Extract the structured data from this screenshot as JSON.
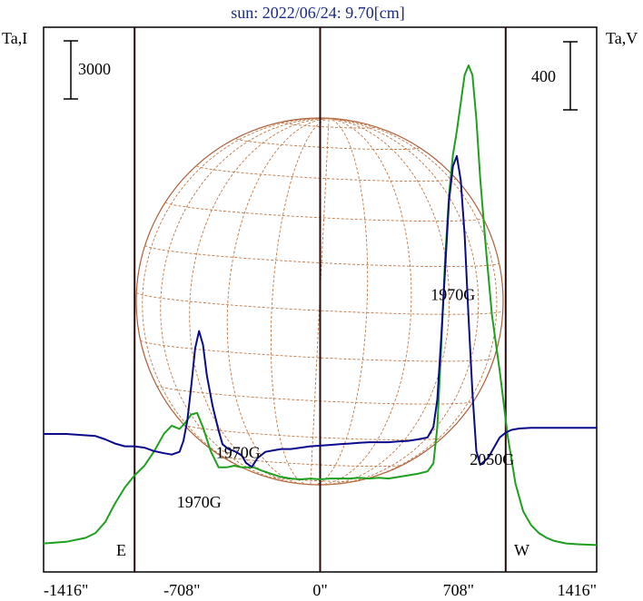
{
  "chart_data": {
    "type": "line",
    "title": "sun: 2022/06/24: 9.70[cm]",
    "ylabel_left": "Ta,I",
    "ylabel_right": "Ta,V",
    "scale_left": "3000",
    "scale_right": "400",
    "x_unit": "arcsec",
    "xlim": [
      -1416,
      1416
    ],
    "x_ticks": [
      -1416,
      -708,
      0,
      708,
      1416
    ],
    "x_tick_labels": [
      "-1416\"",
      "-708\"",
      "0\"",
      "708\"",
      "1416\""
    ],
    "limb_lines_x": [
      -950,
      0,
      950
    ],
    "limb_labels": [
      "E",
      "W"
    ],
    "grid": false,
    "colors": {
      "intensity": "#1ea01e",
      "polarization": "#0a0a8c",
      "disk_outline": "#b0603a",
      "disk_grid": "#c07846",
      "frame": "#000000",
      "limb_line": "#2a0a0a",
      "title": "#1a2a8a"
    },
    "annotations": [
      {
        "text": "1970G",
        "x": -620,
        "y": 0.5,
        "series": "intensity"
      },
      {
        "text": "1970G",
        "x": -420,
        "y": -0.35,
        "series": "polarization"
      },
      {
        "text": "1970G",
        "x": 680,
        "y": 1.95,
        "series": "polarization"
      },
      {
        "text": "2050G",
        "x": 880,
        "y": -0.45,
        "series": "polarization"
      }
    ],
    "series": [
      {
        "name": "Ta,I",
        "axis": "left",
        "color": "#1ea01e",
        "x": [
          -1416,
          -1300,
          -1200,
          -1150,
          -1100,
          -1050,
          -1000,
          -950,
          -900,
          -850,
          -800,
          -760,
          -720,
          -690,
          -660,
          -630,
          -600,
          -560,
          -520,
          -480,
          -440,
          -400,
          -340,
          -300,
          -250,
          -200,
          -150,
          -100,
          -50,
          0,
          50,
          100,
          150,
          200,
          250,
          300,
          350,
          400,
          450,
          500,
          550,
          580,
          600,
          620,
          640,
          660,
          680,
          700,
          720,
          740,
          760,
          780,
          800,
          820,
          850,
          880,
          920,
          960,
          1000,
          1040,
          1080,
          1120,
          1160,
          1200,
          1260,
          1320,
          1416
        ],
        "y": [
          0.05,
          0.07,
          0.12,
          0.18,
          0.32,
          0.55,
          0.75,
          0.9,
          1.02,
          1.2,
          1.42,
          1.52,
          1.48,
          1.56,
          1.66,
          1.68,
          1.5,
          1.2,
          1.0,
          1.0,
          1.02,
          1.0,
          1.0,
          0.96,
          0.92,
          0.88,
          0.86,
          0.85,
          0.86,
          0.85,
          0.86,
          0.86,
          0.86,
          0.87,
          0.86,
          0.87,
          0.86,
          0.88,
          0.9,
          0.92,
          0.95,
          1.05,
          1.5,
          2.5,
          3.6,
          4.4,
          4.9,
          5.2,
          5.55,
          5.9,
          6.02,
          5.9,
          5.35,
          4.6,
          3.7,
          2.9,
          2.2,
          1.4,
          0.8,
          0.45,
          0.28,
          0.18,
          0.12,
          0.08,
          0.05,
          0.04,
          0.03
        ]
      },
      {
        "name": "Ta,V",
        "axis": "right",
        "color": "#0a0a8c",
        "x": [
          -1416,
          -1300,
          -1200,
          -1150,
          -1100,
          -1050,
          -1000,
          -950,
          -900,
          -850,
          -800,
          -760,
          -720,
          -700,
          -680,
          -660,
          -640,
          -620,
          -600,
          -580,
          -550,
          -520,
          -500,
          -470,
          -440,
          -420,
          -400,
          -380,
          -350,
          -320,
          -280,
          -240,
          -200,
          -150,
          -100,
          -50,
          0,
          50,
          100,
          150,
          200,
          250,
          300,
          350,
          400,
          450,
          500,
          550,
          580,
          600,
          620,
          640,
          660,
          680,
          700,
          720,
          740,
          760,
          780,
          800,
          820,
          840,
          860,
          880,
          900,
          920,
          950,
          980,
          1020,
          1080,
          1150,
          1250,
          1416
        ],
        "y": [
          0,
          0,
          -0.02,
          -0.03,
          -0.08,
          -0.14,
          -0.18,
          -0.18,
          -0.2,
          -0.25,
          -0.28,
          -0.3,
          -0.26,
          -0.1,
          0.2,
          0.7,
          1.25,
          1.5,
          1.3,
          0.85,
          0.4,
          0.05,
          -0.15,
          -0.22,
          -0.25,
          -0.28,
          -0.32,
          -0.42,
          -0.48,
          -0.35,
          -0.26,
          -0.24,
          -0.22,
          -0.22,
          -0.2,
          -0.18,
          -0.17,
          -0.16,
          -0.15,
          -0.14,
          -0.13,
          -0.12,
          -0.12,
          -0.12,
          -0.11,
          -0.1,
          -0.08,
          -0.05,
          0.1,
          0.5,
          1.4,
          2.4,
          3.4,
          3.9,
          4.05,
          3.7,
          2.9,
          1.7,
          0.6,
          -0.25,
          -0.45,
          -0.4,
          -0.35,
          -0.25,
          -0.15,
          -0.05,
          0.02,
          0.06,
          0.08,
          0.09,
          0.09,
          0.09,
          0.09
        ]
      }
    ]
  }
}
